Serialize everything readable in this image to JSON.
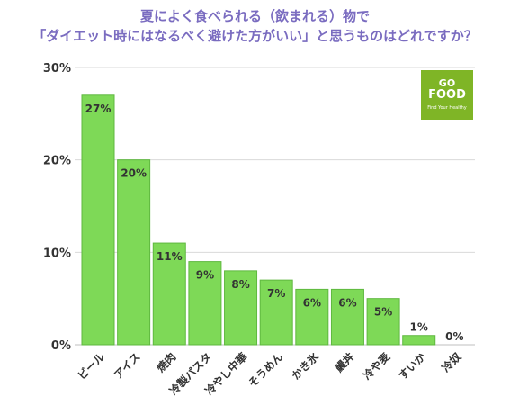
{
  "header": {
    "line1": "夏によく食べられる（飲まれる）物で",
    "line2": "「ダイエット時にはなるべく避けた方がいい」と思うものはどれですか？"
  },
  "logo": {
    "line1": "GO",
    "line2": "FOOD",
    "tagline": "Find Your Healthy",
    "color": "#7fb526"
  },
  "chart_data": {
    "type": "bar",
    "title": "",
    "xlabel": "",
    "ylabel": "",
    "ylim": [
      0,
      30
    ],
    "yticks": [
      0,
      10,
      20,
      30
    ],
    "ytick_labels": [
      "0%",
      "10%",
      "20%",
      "30%"
    ],
    "grid": true,
    "categories": [
      "ビール",
      "アイス",
      "焼肉",
      "冷製パスタ",
      "冷やし中華",
      "そうめん",
      "かき氷",
      "鰻丼",
      "冷や麦",
      "すいか",
      "冷奴"
    ],
    "values": [
      27,
      20,
      11,
      9,
      8,
      7,
      6,
      6,
      5,
      1,
      0
    ],
    "data_labels": [
      "27%",
      "20%",
      "11%",
      "9%",
      "8%",
      "7%",
      "6%",
      "6%",
      "5%",
      "1%",
      "0%"
    ],
    "bar_color": "#7ed957",
    "bar_edge_color": "#5fb83f",
    "grid_color": "#d9d9d9",
    "title_color": "#7a6cc0"
  }
}
